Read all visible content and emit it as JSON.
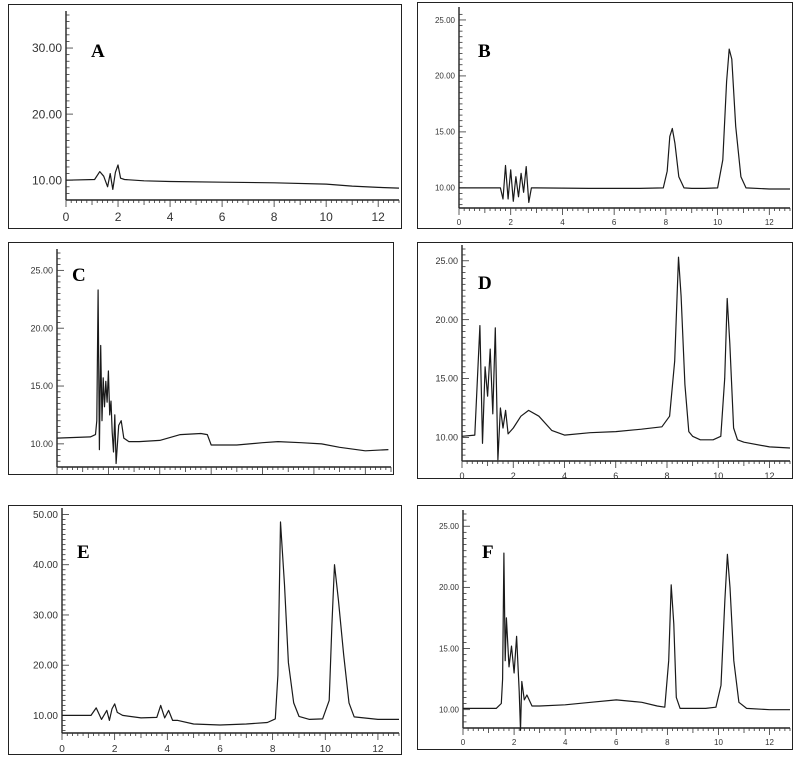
{
  "chart_data": [
    {
      "type": "line",
      "panel_label": "A",
      "xlim": [
        0,
        12.8
      ],
      "ylim": [
        7,
        35
      ],
      "x_ticks": [
        0,
        2,
        4,
        6,
        8,
        10,
        12
      ],
      "y_ticks": [
        10,
        20,
        30
      ],
      "y_tick_labels": [
        "10.00",
        "20.00",
        "30.00"
      ],
      "series": [
        {
          "x": [
            0,
            1.1,
            1.3,
            1.45,
            1.6,
            1.7,
            1.8,
            1.9,
            2.0,
            2.1,
            2.25,
            3,
            4,
            6,
            8,
            10,
            11,
            12,
            12.8
          ],
          "y": [
            10.0,
            10.1,
            11.3,
            10.6,
            9.0,
            11.0,
            8.6,
            11.2,
            12.3,
            10.3,
            10.1,
            9.9,
            9.8,
            9.7,
            9.6,
            9.4,
            9.1,
            8.9,
            8.8
          ]
        }
      ]
    },
    {
      "type": "line",
      "panel_label": "B",
      "xlim": [
        0,
        12.8
      ],
      "ylim": [
        8.2,
        25.8
      ],
      "x_ticks": [
        0,
        2,
        4,
        6,
        8,
        10,
        12
      ],
      "y_ticks": [
        10,
        15,
        20,
        25
      ],
      "y_tick_labels": [
        "10.00",
        "15.00",
        "20.00",
        "25.00"
      ],
      "series": [
        {
          "x": [
            0,
            1.6,
            1.7,
            1.8,
            1.9,
            2.0,
            2.1,
            2.2,
            2.3,
            2.4,
            2.5,
            2.6,
            2.7,
            2.8,
            3.0,
            5,
            7,
            7.9,
            8.05,
            8.15,
            8.25,
            8.35,
            8.5,
            8.7,
            9,
            9.5,
            10.0,
            10.2,
            10.35,
            10.45,
            10.55,
            10.7,
            10.9,
            11.1,
            12,
            12.8
          ],
          "y": [
            10.0,
            10.0,
            9.0,
            12.0,
            9.0,
            11.6,
            8.8,
            11.0,
            9.2,
            11.3,
            9.6,
            11.9,
            8.7,
            10.0,
            10.0,
            9.95,
            9.95,
            10.0,
            11.5,
            14.6,
            15.3,
            14.0,
            11.0,
            10.0,
            9.95,
            9.95,
            10.0,
            12.5,
            19.5,
            22.4,
            21.5,
            15.5,
            11.0,
            10.0,
            9.9,
            9.9
          ]
        }
      ]
    },
    {
      "type": "line",
      "panel_label": "C",
      "xlim": [
        0,
        13
      ],
      "ylim": [
        8,
        26.5
      ],
      "x_ticks": [
        0,
        2,
        4,
        6,
        8,
        10,
        12
      ],
      "y_ticks": [
        10,
        15,
        20,
        25
      ],
      "y_tick_labels": [
        "10.00",
        "15.00",
        "20.00",
        "25.00"
      ],
      "series": [
        {
          "x": [
            0,
            1.3,
            1.5,
            1.55,
            1.6,
            1.65,
            1.7,
            1.75,
            1.8,
            1.85,
            1.9,
            1.95,
            2.0,
            2.05,
            2.1,
            2.15,
            2.2,
            2.25,
            2.3,
            2.4,
            2.5,
            2.6,
            2.8,
            3.2,
            4.0,
            4.8,
            5.6,
            5.85,
            6.0,
            7,
            8,
            8.6,
            9.5,
            10.3,
            11,
            12,
            12.9
          ],
          "y": [
            10.5,
            10.6,
            10.8,
            12.0,
            23.3,
            9.5,
            18.5,
            12.0,
            15.7,
            13.2,
            15.4,
            13.6,
            16.3,
            12.5,
            13.7,
            11.0,
            9.3,
            12.5,
            8.3,
            11.6,
            12.0,
            10.5,
            10.2,
            10.2,
            10.3,
            10.8,
            10.9,
            10.8,
            9.9,
            9.9,
            10.1,
            10.2,
            10.1,
            10.0,
            9.7,
            9.4,
            9.5
          ]
        }
      ]
    },
    {
      "type": "line",
      "panel_label": "D",
      "xlim": [
        0,
        12.8
      ],
      "ylim": [
        8,
        26
      ],
      "x_ticks": [
        0,
        2,
        4,
        6,
        8,
        10,
        12
      ],
      "y_ticks": [
        10,
        15,
        20,
        25
      ],
      "y_tick_labels": [
        "10.00",
        "15.00",
        "20.00",
        "25.00"
      ],
      "series": [
        {
          "x": [
            0,
            0.5,
            0.7,
            0.8,
            0.9,
            1.0,
            1.1,
            1.2,
            1.3,
            1.4,
            1.5,
            1.6,
            1.7,
            1.8,
            2.0,
            2.3,
            2.6,
            3.0,
            3.5,
            4.0,
            5,
            6,
            7,
            7.8,
            8.1,
            8.3,
            8.45,
            8.55,
            8.7,
            8.85,
            9.0,
            9.3,
            9.8,
            10.1,
            10.25,
            10.35,
            10.45,
            10.6,
            10.75,
            11,
            12,
            12.8
          ],
          "y": [
            10.1,
            10.2,
            19.5,
            9.5,
            16.0,
            13.5,
            17.5,
            12.0,
            19.3,
            8.1,
            12.5,
            10.8,
            12.3,
            10.3,
            10.8,
            11.8,
            12.3,
            11.8,
            10.6,
            10.2,
            10.4,
            10.5,
            10.7,
            10.9,
            11.8,
            16.5,
            25.3,
            22.0,
            14.5,
            10.5,
            10.1,
            9.8,
            9.8,
            10.1,
            15.0,
            21.8,
            18.0,
            10.8,
            9.8,
            9.6,
            9.2,
            9.1
          ]
        }
      ]
    },
    {
      "type": "line",
      "panel_label": "E",
      "xlim": [
        0,
        12.8
      ],
      "ylim": [
        6.5,
        50.5
      ],
      "x_ticks": [
        0,
        2,
        4,
        6,
        8,
        10,
        12
      ],
      "y_ticks": [
        10,
        20,
        30,
        40,
        50
      ],
      "y_tick_labels": [
        "10.00",
        "20.00",
        "30.00",
        "40.00",
        "50.00"
      ],
      "series": [
        {
          "x": [
            0,
            1.1,
            1.3,
            1.5,
            1.7,
            1.8,
            1.9,
            2.0,
            2.1,
            2.3,
            3.0,
            3.6,
            3.75,
            3.9,
            4.05,
            4.2,
            4.4,
            5,
            6,
            7,
            7.8,
            8.1,
            8.2,
            8.3,
            8.45,
            8.6,
            8.8,
            9.0,
            9.4,
            9.9,
            10.15,
            10.25,
            10.35,
            10.5,
            10.7,
            10.9,
            11.1,
            12,
            12.8
          ],
          "y": [
            10.0,
            10.0,
            11.5,
            9.2,
            11.0,
            9.0,
            11.3,
            12.3,
            10.6,
            10.0,
            9.5,
            9.6,
            12.0,
            9.5,
            11.0,
            9.0,
            9.0,
            8.3,
            8.1,
            8.3,
            8.6,
            9.3,
            18.0,
            48.5,
            36.0,
            20.5,
            12.5,
            9.8,
            9.2,
            9.3,
            13.0,
            28.0,
            40.0,
            33.0,
            22.0,
            12.5,
            9.7,
            9.2,
            9.2
          ]
        }
      ]
    },
    {
      "type": "line",
      "panel_label": "F",
      "xlim": [
        0,
        12.8
      ],
      "ylim": [
        8.5,
        26
      ],
      "x_ticks": [
        0,
        2,
        4,
        6,
        8,
        10,
        12
      ],
      "y_ticks": [
        10,
        15,
        20,
        25
      ],
      "y_tick_labels": [
        "10.00",
        "15.00",
        "20.00",
        "25.00"
      ],
      "series": [
        {
          "x": [
            0,
            1.3,
            1.5,
            1.55,
            1.6,
            1.65,
            1.7,
            1.8,
            1.9,
            2.0,
            2.1,
            2.2,
            2.25,
            2.3,
            2.4,
            2.5,
            2.7,
            3,
            4,
            5,
            6,
            7,
            7.6,
            7.9,
            8.05,
            8.15,
            8.25,
            8.35,
            8.5,
            9,
            9.5,
            9.9,
            10.1,
            10.25,
            10.35,
            10.45,
            10.6,
            10.8,
            11.1,
            12,
            12.8
          ],
          "y": [
            10.1,
            10.1,
            10.5,
            12.5,
            22.8,
            14.0,
            17.5,
            13.5,
            15.2,
            13.0,
            16.0,
            11.5,
            8.3,
            12.3,
            10.8,
            11.2,
            10.3,
            10.3,
            10.4,
            10.6,
            10.8,
            10.6,
            10.3,
            10.2,
            14.0,
            20.2,
            17.0,
            11.0,
            10.1,
            10.1,
            10.1,
            10.2,
            12.0,
            19.0,
            22.7,
            20.0,
            14.0,
            10.6,
            10.1,
            10.0,
            10.0
          ]
        }
      ]
    }
  ]
}
